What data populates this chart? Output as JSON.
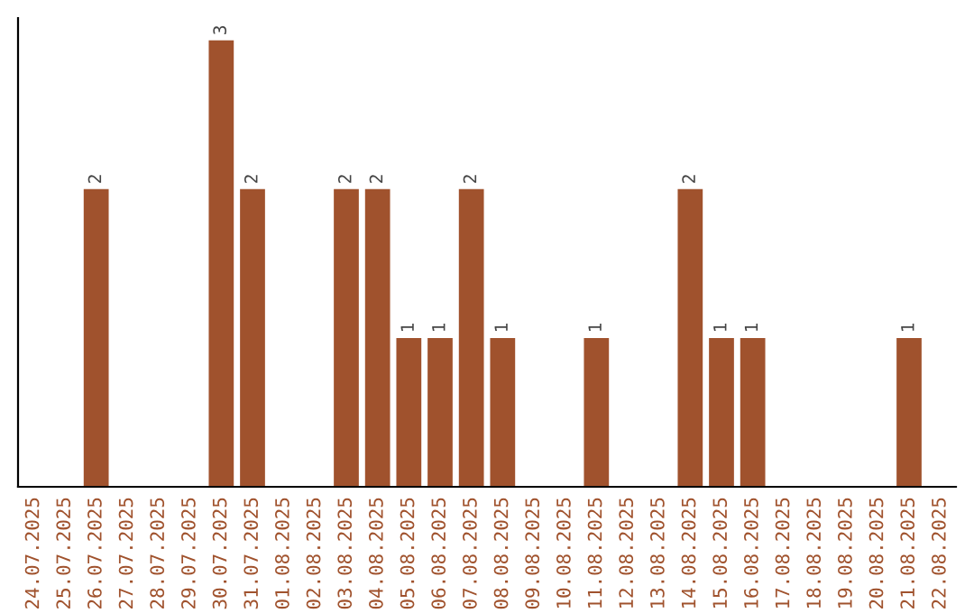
{
  "chart_data": {
    "type": "bar",
    "categories": [
      "24.07.2025",
      "25.07.2025",
      "26.07.2025",
      "27.07.2025",
      "28.07.2025",
      "29.07.2025",
      "30.07.2025",
      "31.07.2025",
      "01.08.2025",
      "02.08.2025",
      "03.08.2025",
      "04.08.2025",
      "05.08.2025",
      "06.08.2025",
      "07.08.2025",
      "08.08.2025",
      "09.08.2025",
      "10.08.2025",
      "11.08.2025",
      "12.08.2025",
      "13.08.2025",
      "14.08.2025",
      "15.08.2025",
      "16.08.2025",
      "17.08.2025",
      "18.08.2025",
      "19.08.2025",
      "20.08.2025",
      "21.08.2025",
      "22.08.2025"
    ],
    "values": [
      0,
      0,
      2,
      0,
      0,
      0,
      3,
      2,
      0,
      0,
      2,
      2,
      1,
      1,
      2,
      1,
      0,
      0,
      1,
      0,
      0,
      2,
      1,
      1,
      0,
      0,
      0,
      0,
      1,
      0
    ],
    "value_labels": [
      null,
      null,
      "2",
      null,
      null,
      null,
      "3",
      "2",
      null,
      null,
      "2",
      "2",
      "1",
      "1",
      "2",
      "1",
      null,
      null,
      "1",
      null,
      null,
      "2",
      "1",
      "1",
      null,
      null,
      null,
      null,
      "1",
      null
    ],
    "color": "#a0522d",
    "grid": false,
    "legend": false,
    "tick_labels": "x"
  }
}
